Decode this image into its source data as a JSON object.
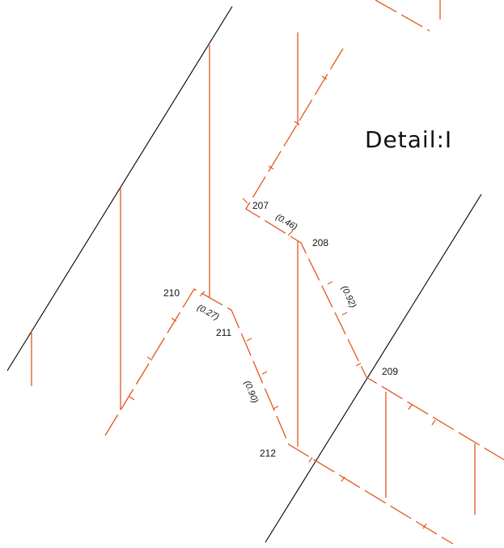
{
  "title": "Detail:I",
  "colors": {
    "pipe": "#e2571c",
    "frame": "#000000",
    "background": "#ffffff",
    "text": "#111111"
  },
  "nodes": {
    "n207": "207",
    "n208": "208",
    "n209": "209",
    "n210": "210",
    "n211": "211",
    "n212": "212"
  },
  "segments": {
    "s207_208": "(0.46)",
    "s208_209": "(0.92)",
    "s210_211": "(0.27)",
    "s211_212": "(0.90)"
  }
}
